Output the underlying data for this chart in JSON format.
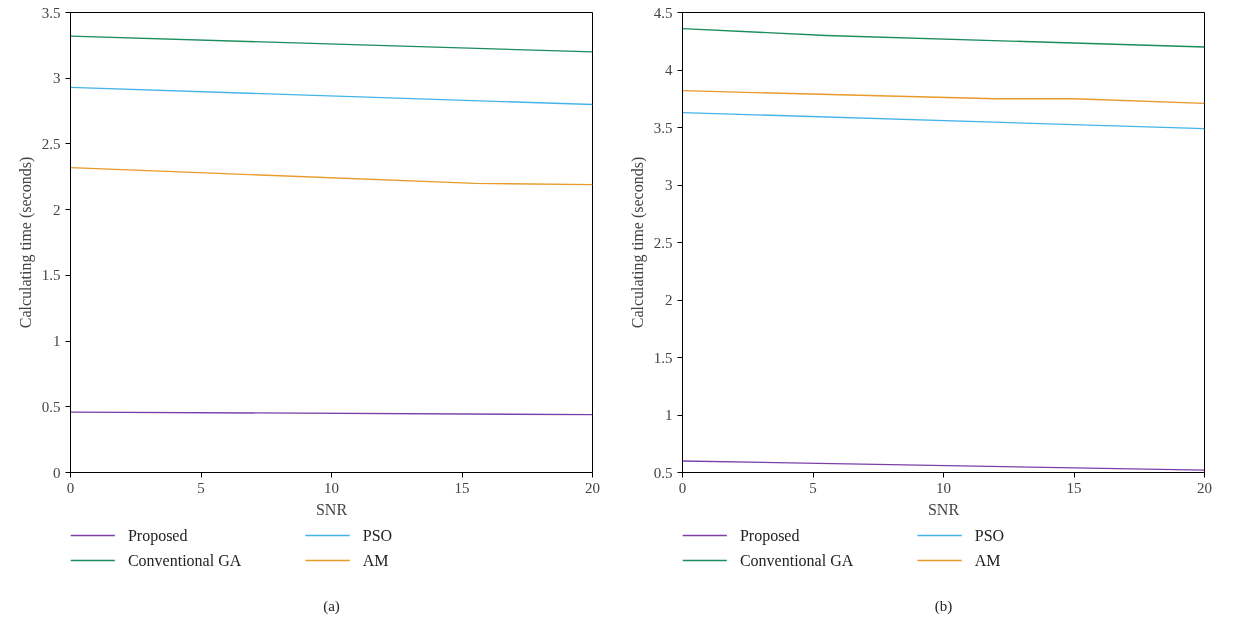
{
  "chart_data": [
    {
      "type": "line",
      "xlabel": "SNR",
      "ylabel": "Calculating time (seconds)",
      "xlim": [
        0,
        20
      ],
      "xticks": [
        0,
        5,
        10,
        15,
        20
      ],
      "ylim": [
        0,
        3.5
      ],
      "yticks": [
        0,
        0.5,
        1,
        1.5,
        2,
        2.5,
        3,
        3.5
      ],
      "grid": false,
      "legend": "bottom",
      "marker": "none",
      "line_style": "solid",
      "annotations": [
        "(a)"
      ],
      "series": [
        {
          "name": "Proposed",
          "color": "#7b3fa8",
          "x": [
            0,
            20
          ],
          "values": [
            0.46,
            0.44
          ]
        },
        {
          "name": "Conventional GA",
          "color": "#1b8c5c",
          "x": [
            0,
            20
          ],
          "values": [
            3.32,
            3.2
          ]
        },
        {
          "name": "PSO",
          "color": "#45b3e8",
          "x": [
            0,
            20
          ],
          "values": [
            2.93,
            2.8
          ]
        },
        {
          "name": "AM",
          "color": "#e89a2a",
          "x": [
            0,
            15.5,
            20
          ],
          "values": [
            2.32,
            2.2,
            2.19
          ]
        }
      ]
    },
    {
      "type": "line",
      "xlabel": "SNR",
      "ylabel": "Calculating time (seconds)",
      "xlim": [
        0,
        20
      ],
      "xticks": [
        0,
        5,
        10,
        15,
        20
      ],
      "ylim": [
        0.5,
        4.5
      ],
      "yticks": [
        0.5,
        1,
        1.5,
        2,
        2.5,
        3,
        3.5,
        4,
        4.5
      ],
      "grid": false,
      "legend": "bottom",
      "marker": "none",
      "line_style": "solid",
      "annotations": [
        "(b)"
      ],
      "series": [
        {
          "name": "Proposed",
          "color": "#7b3fa8",
          "x": [
            0,
            20
          ],
          "values": [
            0.6,
            0.52
          ]
        },
        {
          "name": "Conventional GA",
          "color": "#1b8c5c",
          "x": [
            0,
            5.5,
            20
          ],
          "values": [
            4.36,
            4.3,
            4.2
          ]
        },
        {
          "name": "PSO",
          "color": "#45b3e8",
          "x": [
            0,
            20
          ],
          "values": [
            3.63,
            3.49
          ]
        },
        {
          "name": "AM",
          "color": "#e89a2a",
          "x": [
            0,
            12,
            15,
            20
          ],
          "values": [
            3.82,
            3.75,
            3.75,
            3.71
          ]
        }
      ]
    }
  ]
}
